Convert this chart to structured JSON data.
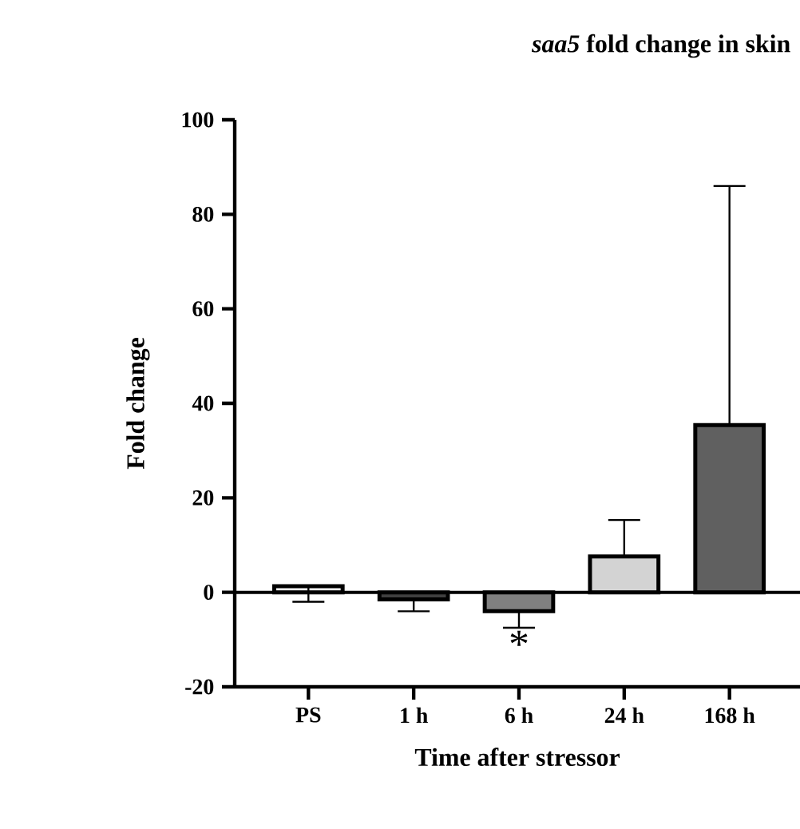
{
  "chart_data": {
    "type": "bar",
    "title": "*saa5* fold change in skin",
    "xlabel": "Time after stressor",
    "ylabel": "Fold change",
    "categories": [
      "PS",
      "1 h",
      "6 h",
      "24 h",
      "168 h"
    ],
    "values": [
      1.3,
      -1.5,
      -4,
      7.6,
      35.4
    ],
    "colors": [
      "#ffffff",
      "#404040",
      "#808080",
      "#d3d3d3",
      "#606060"
    ],
    "errors": [
      [
        -2,
        1.3
      ],
      [
        -4,
        -1.5
      ],
      [
        -7.5,
        -4
      ],
      [
        7.6,
        15.3
      ],
      [
        35.4,
        86
      ]
    ],
    "ylim": [
      -20,
      100
    ],
    "yticks": [
      -20,
      0,
      20,
      40,
      60,
      80,
      100
    ],
    "ref_lines": [
      {
        "axis": "y",
        "value": 0,
        "color": "#000000"
      }
    ],
    "annotations": [
      "*"
    ]
  }
}
